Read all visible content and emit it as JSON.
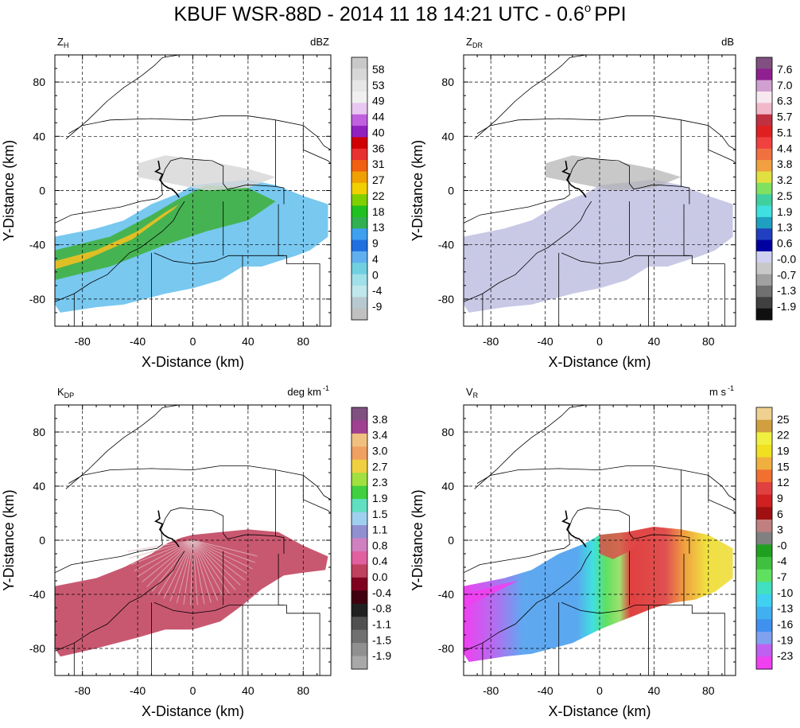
{
  "figure": {
    "title": "KBUF WSR-88D - 2014 11 18 14:21 UTC - 0.6",
    "title_degree": "o",
    "title_tail": "PPI"
  },
  "chart_data": [
    {
      "type": "heatmap",
      "field": "reflectivity",
      "label_main": "Z",
      "label_sub": "H",
      "units": "dBZ",
      "units_sup": "",
      "xlabel": "X-Distance (km)",
      "ylabel": "Y-Distance (km)",
      "xlim": [
        -100,
        100
      ],
      "ylim": [
        -100,
        100
      ],
      "xticks": [
        -80,
        -40,
        0,
        40,
        80
      ],
      "yticks": [
        -80,
        -40,
        0,
        40,
        80
      ],
      "grid": true,
      "colorbar_labels": [
        "58",
        "53",
        "49",
        "44",
        "40",
        "36",
        "31",
        "27",
        "22",
        "18",
        "13",
        "9",
        "4",
        "0",
        "-4",
        "-9"
      ],
      "colorbar_colors": [
        "#c8c8c8",
        "#d7d7d7",
        "#e6e6e6",
        "#f0f0f0",
        "#e8c8f0",
        "#c060e0",
        "#9020c0",
        "#d00000",
        "#e83030",
        "#f06010",
        "#f0a000",
        "#f0d000",
        "#80d000",
        "#20c020",
        "#30b050",
        "#40a0f0",
        "#2070e0",
        "#60b0f0",
        "#70d0e0",
        "#a0e0e8",
        "#c0e8ec",
        "#b8c8d0",
        "#c0c0c0"
      ],
      "echo_style": "zh"
    },
    {
      "type": "heatmap",
      "field": "differential_reflectivity",
      "label_main": "Z",
      "label_sub": "DR",
      "units": "dB",
      "units_sup": "",
      "xlabel": "X-Distance (km)",
      "ylabel": "Y-Distance (km)",
      "xlim": [
        -100,
        100
      ],
      "ylim": [
        -100,
        100
      ],
      "xticks": [
        -80,
        -40,
        0,
        40,
        80
      ],
      "yticks": [
        -80,
        -40,
        0,
        40,
        80
      ],
      "grid": true,
      "colorbar_labels": [
        "7.6",
        "7.0",
        "6.3",
        "5.7",
        "5.1",
        "4.4",
        "3.8",
        "3.2",
        "2.5",
        "1.9",
        "1.3",
        "0.6",
        "-0.0",
        "-0.7",
        "-1.3",
        "-1.9"
      ],
      "colorbar_colors": [
        "#805080",
        "#902090",
        "#d0a0d0",
        "#f8e8f0",
        "#f0b8c8",
        "#c03040",
        "#e02020",
        "#f04040",
        "#f07040",
        "#f0a040",
        "#e0e040",
        "#80e060",
        "#40d0a0",
        "#40e0e0",
        "#20a0c0",
        "#2040c0",
        "#0000a0",
        "#d0d0f0",
        "#c8c8c8",
        "#a0a0a0",
        "#707070",
        "#404040",
        "#101010"
      ],
      "echo_style": "zdr"
    },
    {
      "type": "heatmap",
      "field": "specific_differential_phase",
      "label_main": "K",
      "label_sub": "DP",
      "units": "deg km",
      "units_sup": "-1",
      "xlabel": "X-Distance (km)",
      "ylabel": "Y-Distance (km)",
      "xlim": [
        -100,
        100
      ],
      "ylim": [
        -100,
        100
      ],
      "xticks": [
        -80,
        -40,
        0,
        40,
        80
      ],
      "yticks": [
        -80,
        -40,
        0,
        40,
        80
      ],
      "grid": true,
      "colorbar_labels": [
        "3.8",
        "3.4",
        "3.0",
        "2.7",
        "2.3",
        "1.9",
        "1.5",
        "1.1",
        "0.8",
        "0.4",
        "0.0",
        "-0.4",
        "-0.8",
        "-1.1",
        "-1.5",
        "-1.9"
      ],
      "colorbar_colors": [
        "#805080",
        "#a04090",
        "#f0c080",
        "#f0a060",
        "#f0d040",
        "#a0e040",
        "#40d040",
        "#60e0c0",
        "#a0d0f0",
        "#9090d0",
        "#d080c0",
        "#e060a0",
        "#c04060",
        "#800020",
        "#400010",
        "#202020",
        "#505050",
        "#707070",
        "#909090",
        "#a8a8a8"
      ],
      "echo_style": "kdp"
    },
    {
      "type": "heatmap",
      "field": "radial_velocity",
      "label_main": "V",
      "label_sub": "R",
      "units": "m s",
      "units_sup": "-1",
      "xlabel": "X-Distance (km)",
      "ylabel": "Y-Distance (km)",
      "xlim": [
        -100,
        100
      ],
      "ylim": [
        -100,
        100
      ],
      "xticks": [
        -80,
        -40,
        0,
        40,
        80
      ],
      "yticks": [
        -80,
        -40,
        0,
        40,
        80
      ],
      "grid": true,
      "colorbar_labels": [
        "25",
        "22",
        "19",
        "15",
        "12",
        "9",
        "6",
        "3",
        "-0",
        "-4",
        "-7",
        "-10",
        "-13",
        "-16",
        "-19",
        "-23"
      ],
      "colorbar_colors": [
        "#f0d090",
        "#d0a040",
        "#f0f040",
        "#f0e020",
        "#f0b040",
        "#f07030",
        "#e04040",
        "#d02020",
        "#a01010",
        "#c08080",
        "#808080",
        "#20a020",
        "#40c040",
        "#60e060",
        "#40e0c0",
        "#40d0f0",
        "#40b0f0",
        "#4090f0",
        "#80a0f0",
        "#c060f0",
        "#f040f0"
      ],
      "echo_style": "vr"
    }
  ]
}
